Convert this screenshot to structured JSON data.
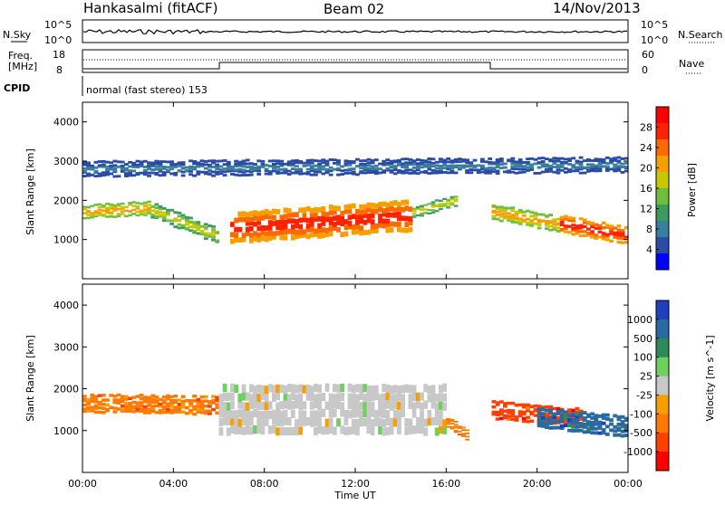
{
  "header": {
    "station": "Hankasalmi (fitACF)",
    "beam": "Beam 02",
    "date": "14/Nov/2013"
  },
  "noise_panel": {
    "left_label": "N.Sky",
    "right_label": "N.Search",
    "left_ticks": [
      "10^5",
      "10^0"
    ],
    "right_ticks": [
      "10^5",
      "10^0"
    ]
  },
  "freq_panel": {
    "left_label_1": "Freq.",
    "left_label_2": "[MHz]",
    "right_label": "Nave",
    "left_ticks": [
      "18",
      "8"
    ],
    "right_ticks": [
      "60",
      "0"
    ]
  },
  "cpid": {
    "label": "CPID",
    "text": "normal (fast stereo) 153"
  },
  "time_axis": {
    "label": "Time UT",
    "ticks": [
      "00:00",
      "04:00",
      "08:00",
      "12:00",
      "16:00",
      "20:00",
      "00:00"
    ]
  },
  "power_panel": {
    "ylabel": "Slant Range [km]",
    "yticks": [
      "4000",
      "3000",
      "2000",
      "1000"
    ],
    "colorbar_label": "Power [dB]",
    "colorbar_ticks": [
      "28",
      "24",
      "20",
      "16",
      "12",
      "8",
      "4"
    ],
    "colors": [
      "#0000ff",
      "#2a4ba6",
      "#3a7f9a",
      "#3f9a5e",
      "#6fbf3f",
      "#c8c800",
      "#f5a000",
      "#ff6a00",
      "#ff2200",
      "#ff0000"
    ]
  },
  "velocity_panel": {
    "ylabel": "Slant Range [km]",
    "yticks": [
      "4000",
      "3000",
      "2000",
      "1000"
    ],
    "colorbar_label": "Velocity [m s^-1]",
    "colorbar_ticks": [
      "1000",
      "500",
      "100",
      "25",
      "-25",
      "-100",
      "-500",
      "-1000"
    ],
    "colors": [
      "#1f3fbf",
      "#2a6aa0",
      "#2f8a5a",
      "#6fd060",
      "#c8c8c8",
      "#f5a000",
      "#ff7a00",
      "#ff4000",
      "#ff0000"
    ]
  },
  "chart_data": {
    "type": "heatmap",
    "x_range_hours": [
      0,
      24
    ],
    "y_range_km": [
      0,
      4500
    ],
    "power_bands": [
      {
        "t": [
          0,
          3
        ],
        "r_center": [
          1700,
          1800
        ],
        "width": 350,
        "level": 7
      },
      {
        "t": [
          3,
          6
        ],
        "r_center": [
          1750,
          1100
        ],
        "width": 400,
        "level": 6
      },
      {
        "t": [
          6.5,
          14.5
        ],
        "r_center": [
          1300,
          1600
        ],
        "width": 800,
        "level": 9
      },
      {
        "t": [
          14.5,
          16.5
        ],
        "r_center": [
          1700,
          2000
        ],
        "width": 300,
        "level": 6
      },
      {
        "t": [
          18,
          21
        ],
        "r_center": [
          1700,
          1400
        ],
        "width": 400,
        "level": 7
      },
      {
        "t": [
          21,
          24
        ],
        "r_center": [
          1400,
          1100
        ],
        "width": 450,
        "level": 9
      },
      {
        "t": [
          0,
          24
        ],
        "r_center": [
          2800,
          2900
        ],
        "width": 400,
        "level": 3
      }
    ],
    "velocity_bands": [
      {
        "t": [
          0,
          6
        ],
        "r_center": [
          1650,
          1600
        ],
        "width": 450,
        "value": -300
      },
      {
        "t": [
          6,
          16
        ],
        "r_center": [
          1500,
          1500
        ],
        "width": 1200,
        "value": 0
      },
      {
        "t": [
          16,
          17
        ],
        "r_center": [
          1200,
          900
        ],
        "width": 250,
        "value": -200
      },
      {
        "t": [
          18,
          22
        ],
        "r_center": [
          1500,
          1300
        ],
        "width": 450,
        "value": -600
      },
      {
        "t": [
          20,
          24
        ],
        "r_center": [
          1300,
          1100
        ],
        "width": 500,
        "value": 150
      }
    ]
  }
}
